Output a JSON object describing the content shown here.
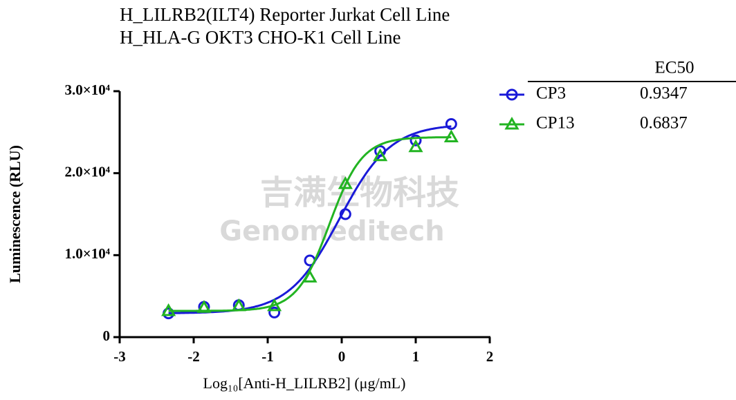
{
  "chart_data": {
    "type": "scatter",
    "title": "H_LILRB2(ILT4) Reporter Jurkat Cell Line",
    "subtitle": "H_HLA-G OKT3 CHO-K1 Cell Line",
    "xlabel": "Log₁₀[Anti-H_LILRB2] (μg/mL)",
    "ylabel": "Luminescence (RLU)",
    "table_header": "EC50",
    "watermark": [
      "吉满生物科技",
      "Genomeditech"
    ],
    "x": [
      -2.34,
      -1.86,
      -1.39,
      -0.91,
      -0.43,
      0.05,
      0.52,
      1.0,
      1.48
    ],
    "series": [
      {
        "name": "CP3",
        "color": "#1a1ad8",
        "marker": "circle",
        "ec50": 0.9347,
        "values": [
          2900,
          3700,
          3900,
          3000,
          9350,
          15000,
          22700,
          24000,
          26000
        ]
      },
      {
        "name": "CP13",
        "color": "#22b422",
        "marker": "triangle",
        "ec50": 0.6837,
        "values": [
          3200,
          3600,
          3800,
          3800,
          7300,
          18700,
          22100,
          23200,
          24400
        ]
      }
    ],
    "xlim": [
      -3,
      2
    ],
    "xticks": [
      -3,
      -2,
      -1,
      0,
      1,
      2
    ],
    "ylim": [
      0,
      30000
    ],
    "yticks": [
      0,
      {
        "value": 10000,
        "label": "1.0×10⁴"
      },
      {
        "value": 20000,
        "label": "2.0×10⁴"
      },
      {
        "value": 30000,
        "label": "3.0×10⁴"
      }
    ]
  }
}
